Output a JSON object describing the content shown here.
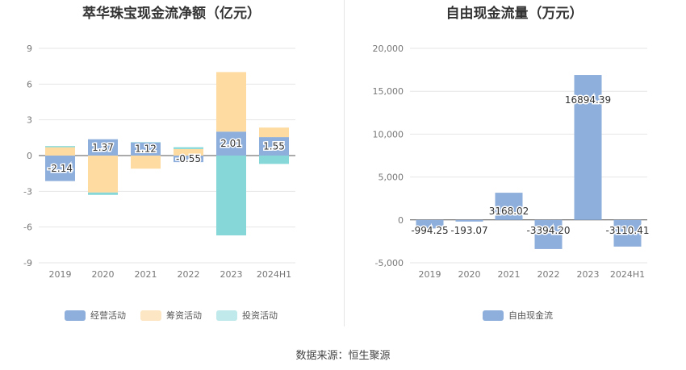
{
  "source_text": "数据来源：恒生聚源",
  "colors": {
    "operating": "#8eaedb",
    "financing": "#fedba0",
    "investing": "#86d8d8",
    "fcf": "#8eaedb",
    "grid": "#e6e6e6",
    "axis": "#555555"
  },
  "chart_data": [
    {
      "type": "bar",
      "stacked": true,
      "title": "萃华珠宝现金流净额（亿元）",
      "categories": [
        "2019",
        "2020",
        "2021",
        "2022",
        "2023",
        "2024H1"
      ],
      "yticks": [
        "9",
        "6",
        "3",
        "0",
        "-3",
        "-6",
        "-9"
      ],
      "ylim": [
        -9,
        9
      ],
      "series": [
        {
          "name": "经营活动",
          "color_key": "operating",
          "values": [
            -2.14,
            1.37,
            1.12,
            -0.55,
            2.01,
            1.55
          ],
          "labels": [
            "-2.14",
            "1.37",
            "1.12",
            "-0.55",
            "2.01",
            "1.55"
          ]
        },
        {
          "name": "筹资活动",
          "color_key": "financing",
          "values": [
            0.7,
            -3.1,
            -1.1,
            0.55,
            5.0,
            0.8
          ]
        },
        {
          "name": "投资活动",
          "color_key": "investing",
          "values": [
            0.1,
            -0.2,
            0.0,
            0.15,
            -6.7,
            -0.7
          ]
        }
      ],
      "legend": "bottom"
    },
    {
      "type": "bar",
      "title": "自由现金流量（万元）",
      "categories": [
        "2019",
        "2020",
        "2021",
        "2022",
        "2023",
        "2024H1"
      ],
      "yticks": [
        "20,000",
        "15,000",
        "10,000",
        "5,000",
        "0",
        "-5,000"
      ],
      "ylim": [
        -5000,
        20000
      ],
      "series": [
        {
          "name": "自由现金流",
          "color_key": "fcf",
          "values": [
            -994.25,
            -193.07,
            3168.02,
            -3394.2,
            16894.39,
            -3110.41
          ],
          "labels": [
            "-994.25",
            "-193.07",
            "3168.02",
            "-3394.20",
            "16894.39",
            "-3110.41"
          ]
        }
      ],
      "legend": "bottom"
    }
  ]
}
